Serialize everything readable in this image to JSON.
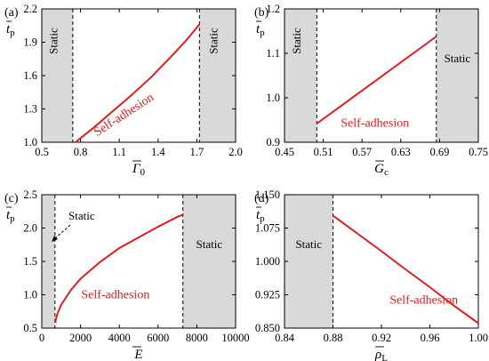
{
  "chart_data": [
    {
      "type": "line",
      "panel": "(a)",
      "xlabel": "Γ",
      "xlabel_sub": "0",
      "ylabel": "t",
      "ylabel_sub": "p",
      "xlim": [
        0.5,
        2.0
      ],
      "ylim": [
        1.0,
        2.2
      ],
      "xticks": [
        "0.5",
        "0.8",
        "1.1",
        "1.4",
        "1.7",
        "2.0"
      ],
      "yticks": [
        "1.0",
        "1.3",
        "1.6",
        "1.9",
        "2.2"
      ],
      "static_regions": [
        [
          0.5,
          0.74
        ],
        [
          1.72,
          2.0
        ]
      ],
      "static_labels": [
        {
          "text": "Static",
          "region": 0,
          "rotated": true
        },
        {
          "text": "Static",
          "region": 1,
          "rotated": true
        }
      ],
      "series_label": "Self-adhesion",
      "series": [
        {
          "x": [
            0.76,
            0.9,
            1.05,
            1.2,
            1.35,
            1.5,
            1.62,
            1.72
          ],
          "y": [
            1.0,
            1.13,
            1.28,
            1.43,
            1.59,
            1.77,
            1.92,
            2.06
          ]
        }
      ]
    },
    {
      "type": "line",
      "panel": "(b)",
      "xlabel": "G",
      "xlabel_sub": "c",
      "ylabel": "t",
      "ylabel_sub": "p",
      "xlim": [
        0.45,
        0.75
      ],
      "ylim": [
        0.9,
        1.2
      ],
      "xticks": [
        "0.45",
        "0.51",
        "0.57",
        "0.63",
        "0.69",
        "0.75"
      ],
      "yticks": [
        "0.9",
        "1.0",
        "1.1",
        "1.2"
      ],
      "static_regions": [
        [
          0.45,
          0.5
        ],
        [
          0.685,
          0.75
        ]
      ],
      "static_labels": [
        {
          "text": "Static",
          "region": 0,
          "rotated": true
        },
        {
          "text": "Static",
          "region": 1,
          "rotated": false
        }
      ],
      "series_label": "Self-adhesion",
      "series": [
        {
          "x": [
            0.5,
            0.685
          ],
          "y": [
            0.942,
            1.138
          ]
        }
      ]
    },
    {
      "type": "line",
      "panel": "(c)",
      "xlabel": "E",
      "xlabel_sub": "",
      "ylabel": "t",
      "ylabel_sub": "p",
      "xlim": [
        0,
        10000
      ],
      "ylim": [
        0.5,
        2.5
      ],
      "xticks": [
        "0",
        "2000",
        "4000",
        "6000",
        "8000",
        "10000"
      ],
      "yticks": [
        "0.5",
        "1.0",
        "1.5",
        "2.0",
        "2.5"
      ],
      "static_regions": [
        [
          0,
          680
        ],
        [
          7280,
          10000
        ]
      ],
      "static_labels": [
        {
          "text": "Static",
          "region": 0,
          "rotated": false,
          "callout": true
        },
        {
          "text": "Static",
          "region": 1,
          "rotated": false
        }
      ],
      "series_label": "Self-adhesion",
      "series": [
        {
          "x": [
            700,
            720,
            800,
            1000,
            1500,
            2000,
            3000,
            4000,
            5000,
            6000,
            7000,
            7280
          ],
          "y": [
            0.58,
            0.62,
            0.71,
            0.85,
            1.07,
            1.24,
            1.49,
            1.7,
            1.86,
            2.02,
            2.17,
            2.2
          ]
        }
      ]
    },
    {
      "type": "line",
      "panel": "(d)",
      "xlabel": "ρ",
      "xlabel_sub": "L",
      "ylabel": "t",
      "ylabel_sub": "p",
      "xlim": [
        0.84,
        1.0
      ],
      "ylim": [
        0.85,
        1.15
      ],
      "xticks": [
        "0.84",
        "0.88",
        "0.92",
        "0.96",
        "1.00"
      ],
      "yticks": [
        "0.850",
        "0.925",
        "1.000",
        "1.075",
        "1.150"
      ],
      "static_regions": [
        [
          0.84,
          0.88
        ]
      ],
      "static_labels": [
        {
          "text": "Static",
          "region": 0,
          "rotated": false
        }
      ],
      "series_label": "Self-adhesion",
      "series": [
        {
          "x": [
            0.88,
            0.9,
            0.92,
            0.94,
            0.96,
            0.98,
            1.0
          ],
          "y": [
            1.103,
            1.063,
            1.023,
            0.982,
            0.942,
            0.9,
            0.861
          ]
        }
      ]
    }
  ]
}
